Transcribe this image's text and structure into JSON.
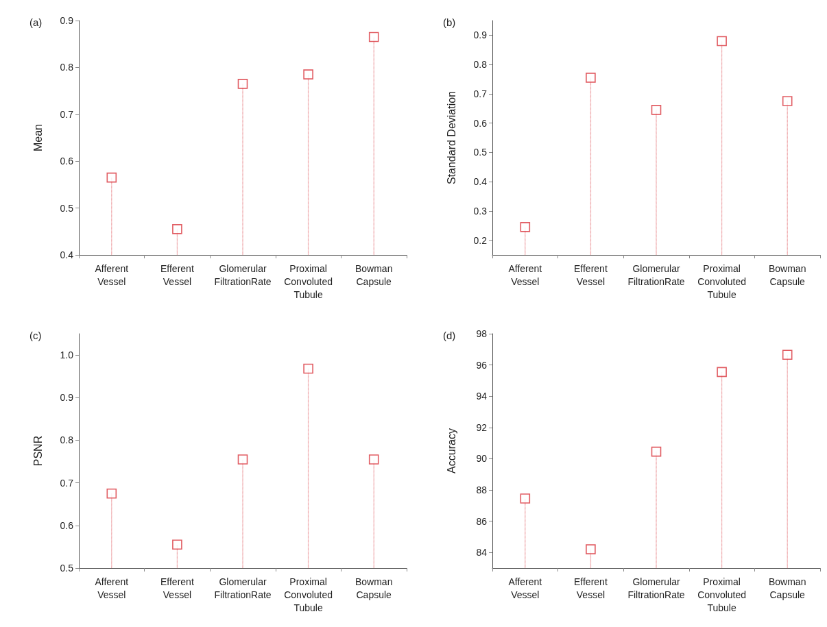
{
  "chart_data": [
    {
      "type": "lollipop",
      "title": "(a)",
      "ylabel": "Mean",
      "categories": [
        "Afferent\nVessel",
        "Efferent\nVessel",
        "Glomerular\nFiltrationRate",
        "Proximal\nConvoluted\nTubule",
        "Bowman\nCapsule"
      ],
      "values": [
        0.565,
        0.455,
        0.765,
        0.785,
        0.865
      ],
      "color": "#d9343c",
      "ylim": [
        0.4,
        0.9
      ],
      "yticks": [
        0.4,
        0.5,
        0.6,
        0.7,
        0.8,
        0.9
      ],
      "marker": "square",
      "line_style": "dotted"
    },
    {
      "type": "lollipop",
      "title": "(b)",
      "ylabel": "Standard Deviation",
      "categories": [
        "Afferent\nVessel",
        "Efferent\nVessel",
        "Glomerular\nFiltrationRate",
        "Proximal\nConvoluted\nTubule",
        "Bowman\nCapsule"
      ],
      "values": [
        0.245,
        0.755,
        0.645,
        0.88,
        0.675
      ],
      "color": "#d9343c",
      "ylim": [
        0.15,
        0.95
      ],
      "yticks": [
        0.2,
        0.3,
        0.4,
        0.5,
        0.6,
        0.7,
        0.8,
        0.9
      ],
      "marker": "square",
      "line_style": "dotted"
    },
    {
      "type": "lollipop",
      "title": "(c)",
      "ylabel": "PSNR",
      "categories": [
        "Afferent\nVessel",
        "Efferent\nVessel",
        "Glomerular\nFiltrationRate",
        "Proximal\nConvoluted\nTubule",
        "Bowman\nCapsule"
      ],
      "values": [
        0.675,
        0.555,
        0.755,
        0.968,
        0.755
      ],
      "color": "#d9343c",
      "ylim": [
        0.5,
        1.05
      ],
      "yticks": [
        {
          "value": 0.5,
          "label": "0.5"
        },
        {
          "value": 0.6,
          "label": "0.6"
        },
        {
          "value": 0.7,
          "label": "0.7"
        },
        {
          "value": 0.8,
          "label": "0.8"
        },
        {
          "value": 0.9,
          "label": "0.9"
        },
        {
          "value": 1.0,
          "label": "1.0"
        }
      ],
      "marker": "square",
      "line_style": "dotted"
    },
    {
      "type": "lollipop",
      "title": "(d)",
      "ylabel": "Accuracy",
      "categories": [
        "Afferent\nVessel",
        "Efferent\nVessel",
        "Glomerular\nFiltrationRate",
        "Proximal\nConvoluted\nTubule",
        "Bowman\nCapsule"
      ],
      "values": [
        87.45,
        84.2,
        90.45,
        95.55,
        96.65
      ],
      "color": "#d9343c",
      "ylim": [
        83,
        98
      ],
      "yticks": [
        84,
        86,
        88,
        90,
        92,
        94,
        96,
        98
      ],
      "marker": "square",
      "line_style": "dotted"
    }
  ]
}
